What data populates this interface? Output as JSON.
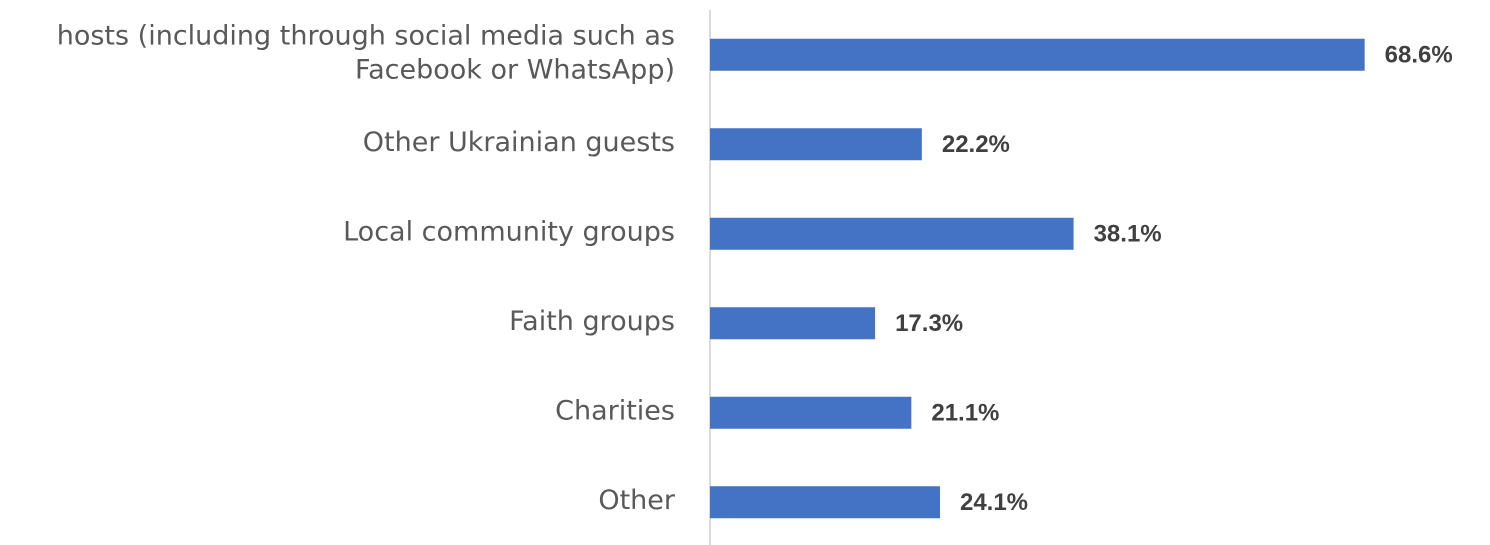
{
  "chart_data": {
    "type": "bar",
    "orientation": "horizontal",
    "categories": [
      [
        "hosts (including through social media such as",
        "Facebook or WhatsApp)"
      ],
      [
        "Other Ukrainian guests"
      ],
      [
        "Local community groups"
      ],
      [
        "Faith groups"
      ],
      [
        "Charities"
      ],
      [
        "Other"
      ]
    ],
    "values": [
      68.6,
      22.2,
      38.1,
      17.3,
      21.1,
      24.1
    ],
    "value_labels": [
      "68.6%",
      "22.2%",
      "38.1%",
      "17.3%",
      "21.1%",
      "24.1%"
    ],
    "unit": "%",
    "xlim": [
      0,
      70
    ],
    "grid": false,
    "legend": "none",
    "colors": {
      "bar": "#4472C4",
      "axis": "#D9D9D9",
      "category_text": "#595959",
      "value_text": "#404040"
    }
  }
}
